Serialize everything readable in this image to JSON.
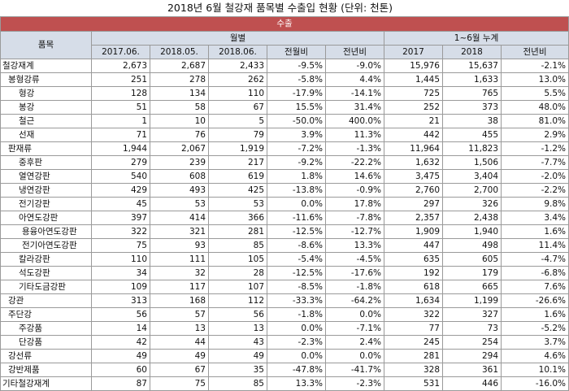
{
  "title": "2018년 6월 철강재 품목별 수출입 현황 (단위: 천톤)",
  "header": {
    "export": "수출",
    "item": "품목",
    "monthly": "월별",
    "cumulative": "1~6월 누계",
    "cols": [
      "2017.06.",
      "2018.05.",
      "2018.06.",
      "전월비",
      "전년비",
      "2017",
      "2018",
      "전년비"
    ]
  },
  "rows": [
    {
      "name": "철강재계",
      "level": 0,
      "v": [
        "2,673",
        "2,687",
        "2,433",
        "-9.5%",
        "-9.0%",
        "15,976",
        "15,637",
        "-2.1%"
      ]
    },
    {
      "name": "봉형강류",
      "level": 1,
      "v": [
        "251",
        "278",
        "262",
        "-5.8%",
        "4.4%",
        "1,445",
        "1,633",
        "13.0%"
      ]
    },
    {
      "name": "형강",
      "level": 2,
      "v": [
        "128",
        "134",
        "110",
        "-17.9%",
        "-14.1%",
        "725",
        "765",
        "5.5%"
      ]
    },
    {
      "name": "봉강",
      "level": 2,
      "v": [
        "51",
        "58",
        "67",
        "15.5%",
        "31.4%",
        "252",
        "373",
        "48.0%"
      ]
    },
    {
      "name": "철근",
      "level": 2,
      "v": [
        "1",
        "10",
        "5",
        "-50.0%",
        "400.0%",
        "21",
        "38",
        "81.0%"
      ]
    },
    {
      "name": "선재",
      "level": 2,
      "v": [
        "71",
        "76",
        "79",
        "3.9%",
        "11.3%",
        "442",
        "455",
        "2.9%"
      ]
    },
    {
      "name": "판재류",
      "level": 1,
      "v": [
        "1,944",
        "2,067",
        "1,919",
        "-7.2%",
        "-1.3%",
        "11,964",
        "11,823",
        "-1.2%"
      ]
    },
    {
      "name": "중후판",
      "level": 2,
      "v": [
        "279",
        "239",
        "217",
        "-9.2%",
        "-22.2%",
        "1,632",
        "1,506",
        "-7.7%"
      ]
    },
    {
      "name": "열연강판",
      "level": 2,
      "v": [
        "540",
        "608",
        "619",
        "1.8%",
        "14.6%",
        "3,475",
        "3,404",
        "-2.0%"
      ]
    },
    {
      "name": "냉연강판",
      "level": 2,
      "v": [
        "429",
        "493",
        "425",
        "-13.8%",
        "-0.9%",
        "2,760",
        "2,700",
        "-2.2%"
      ]
    },
    {
      "name": "전기강판",
      "level": 2,
      "v": [
        "45",
        "53",
        "53",
        "0.0%",
        "17.8%",
        "297",
        "326",
        "9.8%"
      ]
    },
    {
      "name": "아연도강판",
      "level": 2,
      "v": [
        "397",
        "414",
        "366",
        "-11.6%",
        "-7.8%",
        "2,357",
        "2,438",
        "3.4%"
      ]
    },
    {
      "name": "용융아연도강판",
      "level": 3,
      "v": [
        "322",
        "321",
        "281",
        "-12.5%",
        "-12.7%",
        "1,909",
        "1,940",
        "1.6%"
      ]
    },
    {
      "name": "전기아연도강판",
      "level": 3,
      "v": [
        "75",
        "93",
        "85",
        "-8.6%",
        "13.3%",
        "447",
        "498",
        "11.4%"
      ]
    },
    {
      "name": "칼라강판",
      "level": 2,
      "v": [
        "110",
        "111",
        "105",
        "-5.4%",
        "-4.5%",
        "635",
        "605",
        "-4.7%"
      ]
    },
    {
      "name": "석도강판",
      "level": 2,
      "v": [
        "34",
        "32",
        "28",
        "-12.5%",
        "-17.6%",
        "192",
        "179",
        "-6.8%"
      ]
    },
    {
      "name": "기타도금강판",
      "level": 2,
      "v": [
        "109",
        "117",
        "107",
        "-8.5%",
        "-1.8%",
        "618",
        "665",
        "7.6%"
      ]
    },
    {
      "name": "강관",
      "level": 1,
      "v": [
        "313",
        "168",
        "112",
        "-33.3%",
        "-64.2%",
        "1,634",
        "1,199",
        "-26.6%"
      ]
    },
    {
      "name": "주단강",
      "level": 1,
      "v": [
        "56",
        "57",
        "56",
        "-1.8%",
        "0.0%",
        "322",
        "327",
        "1.6%"
      ]
    },
    {
      "name": "주강품",
      "level": 2,
      "v": [
        "14",
        "13",
        "13",
        "0.0%",
        "-7.1%",
        "77",
        "73",
        "-5.2%"
      ]
    },
    {
      "name": "단강품",
      "level": 2,
      "v": [
        "42",
        "44",
        "43",
        "-2.3%",
        "2.4%",
        "245",
        "254",
        "3.7%"
      ]
    },
    {
      "name": "강선류",
      "level": 1,
      "v": [
        "49",
        "49",
        "49",
        "0.0%",
        "0.0%",
        "281",
        "294",
        "4.6%"
      ]
    },
    {
      "name": "강반제품",
      "level": 1,
      "v": [
        "60",
        "67",
        "35",
        "-47.8%",
        "-41.7%",
        "328",
        "361",
        "10.1%"
      ]
    },
    {
      "name": "기타철강재계",
      "level": 0,
      "v": [
        "87",
        "75",
        "85",
        "13.3%",
        "-2.3%",
        "531",
        "446",
        "-16.0%"
      ]
    }
  ]
}
